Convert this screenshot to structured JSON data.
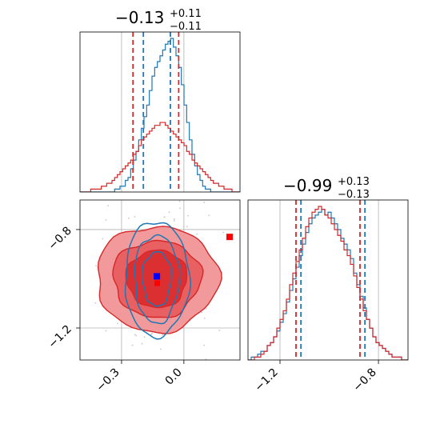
{
  "chart_data": {
    "type": "corner",
    "colors": {
      "series_blue": "#1f77b4",
      "series_red": "#d62728",
      "truth_blue": "#0000ff",
      "truth_red": "#ff0000",
      "grid": "#b0b0b0"
    },
    "params": [
      {
        "title_value": "−0.13",
        "title_plus": "+0.11",
        "title_minus": "−0.11",
        "range": [
          -0.5,
          0.27
        ],
        "ticks": [
          -0.3,
          0.0
        ],
        "tick_labels": [
          "−0.3",
          "0.0"
        ],
        "truth_lines": [
          -0.13,
          0.0
        ],
        "quantiles": {
          "blue": [
            -0.195,
            -0.065
          ],
          "red": [
            -0.245,
            -0.025
          ]
        },
        "hist": {
          "blue": [
            0,
            0,
            0,
            0,
            0,
            0,
            0,
            0,
            0,
            0,
            0,
            0,
            0,
            1,
            1,
            2,
            2,
            4,
            5,
            8,
            11,
            14,
            18,
            22,
            26,
            30,
            35,
            40,
            43,
            45,
            47,
            49,
            51,
            52,
            53,
            50,
            47,
            43,
            37,
            30,
            24,
            18,
            13,
            9,
            6,
            4,
            2,
            1,
            1,
            0,
            0,
            0,
            0,
            0,
            0,
            0,
            0,
            0,
            0,
            0
          ],
          "red": [
            0,
            0,
            0,
            0,
            1,
            1,
            1,
            1,
            2,
            2,
            3,
            3,
            4,
            5,
            6,
            7,
            8,
            9,
            10,
            11,
            13,
            14,
            16,
            18,
            19,
            20,
            21,
            22,
            23,
            23,
            24,
            24,
            23,
            22,
            21,
            20,
            19,
            18,
            17,
            16,
            14,
            13,
            11,
            10,
            9,
            8,
            7,
            6,
            5,
            4,
            3,
            3,
            2,
            2,
            1,
            1,
            1,
            0,
            0,
            0
          ]
        }
      },
      {
        "title_value": "−0.99",
        "title_plus": "+0.13",
        "title_minus": "−0.13",
        "range": [
          -1.33,
          -0.68
        ],
        "ticks": [
          -1.2,
          -0.8
        ],
        "tick_labels": [
          "−1.2",
          "−0.8"
        ],
        "truth_lines": [
          -1.2,
          -0.8
        ],
        "quantiles": {
          "blue": [
            -1.115,
            -0.855
          ],
          "red": [
            -1.135,
            -0.875
          ]
        },
        "hist": {
          "blue": [
            0,
            1,
            1,
            2,
            3,
            3,
            5,
            6,
            8,
            10,
            13,
            16,
            20,
            24,
            28,
            32,
            36,
            40,
            44,
            47,
            49,
            50,
            51,
            52,
            50,
            51,
            49,
            47,
            45,
            42,
            40,
            38,
            35,
            30,
            26,
            22,
            18,
            14,
            11,
            8,
            6,
            5,
            4,
            3,
            2,
            1,
            1,
            1,
            0,
            0
          ],
          "red": [
            0,
            0,
            1,
            1,
            2,
            3,
            5,
            6,
            8,
            11,
            14,
            17,
            21,
            26,
            30,
            34,
            38,
            42,
            46,
            49,
            51,
            52,
            53,
            52,
            50,
            49,
            47,
            45,
            43,
            41,
            38,
            36,
            33,
            29,
            25,
            21,
            17,
            14,
            11,
            8,
            6,
            5,
            4,
            3,
            2,
            1,
            1,
            1,
            0,
            0
          ]
        }
      }
    ],
    "joint": {
      "points": {
        "blue": [
          -0.13,
          -0.99
        ],
        "red": [
          0.22,
          -0.83
        ]
      },
      "center_red": [
        -0.13,
        -1.0
      ]
    }
  }
}
